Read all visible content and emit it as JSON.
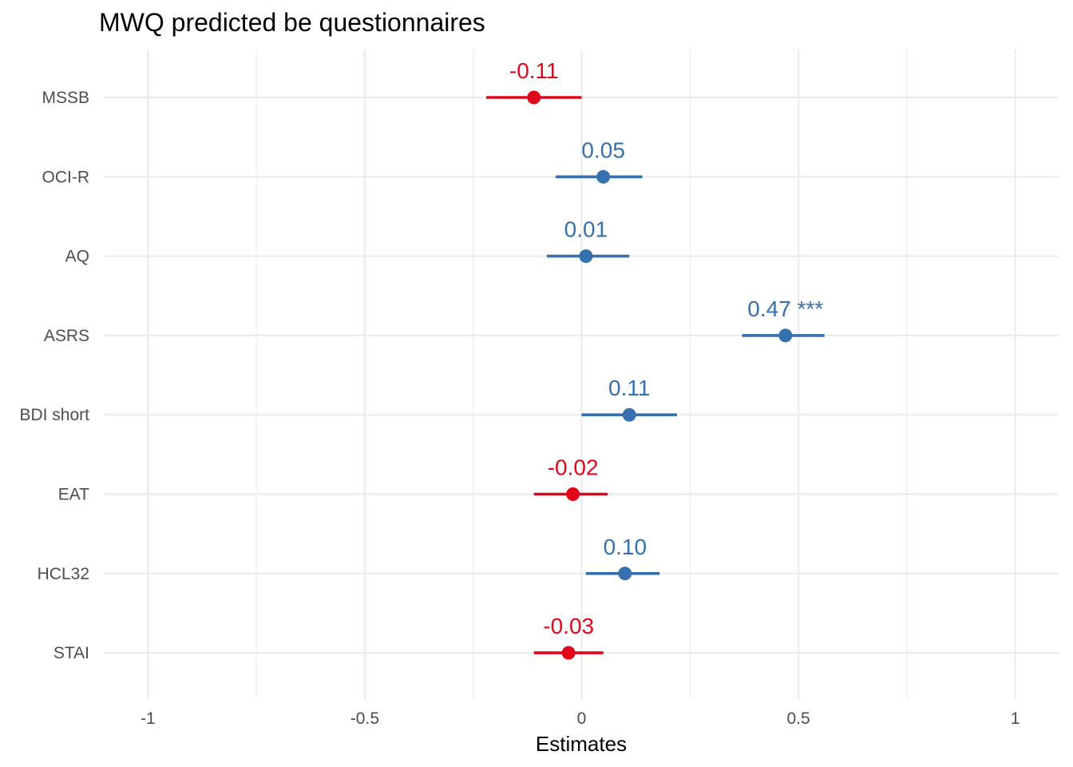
{
  "chart_data": {
    "type": "scatter",
    "title": "MWQ predicted be questionnaires",
    "xlabel": "Estimates",
    "ylabel": "",
    "xlim": [
      -1.1,
      1.1
    ],
    "xticks": [
      -1,
      -0.5,
      0,
      0.5,
      1
    ],
    "xtick_labels": [
      "-1",
      "-0.5",
      "0",
      "0.5",
      "1"
    ],
    "grid": true,
    "colors": {
      "positive": "#3670ae",
      "negative": "#e2061b"
    },
    "terms": [
      {
        "name": "MSSB",
        "estimate": -0.11,
        "ci_low": -0.22,
        "ci_high": 0.0,
        "label": "-0.11",
        "sign": "negative"
      },
      {
        "name": "OCI-R",
        "estimate": 0.05,
        "ci_low": -0.06,
        "ci_high": 0.14,
        "label": "0.05",
        "sign": "positive"
      },
      {
        "name": "AQ",
        "estimate": 0.01,
        "ci_low": -0.08,
        "ci_high": 0.11,
        "label": "0.01",
        "sign": "positive"
      },
      {
        "name": "ASRS",
        "estimate": 0.47,
        "ci_low": 0.37,
        "ci_high": 0.56,
        "label": "0.47 ***",
        "sign": "positive"
      },
      {
        "name": "BDI short",
        "estimate": 0.11,
        "ci_low": 0.0,
        "ci_high": 0.22,
        "label": "0.11",
        "sign": "positive"
      },
      {
        "name": "EAT",
        "estimate": -0.02,
        "ci_low": -0.11,
        "ci_high": 0.06,
        "label": "-0.02",
        "sign": "negative"
      },
      {
        "name": "HCL32",
        "estimate": 0.1,
        "ci_low": 0.01,
        "ci_high": 0.18,
        "label": "0.10",
        "sign": "positive"
      },
      {
        "name": "STAI",
        "estimate": -0.03,
        "ci_low": -0.11,
        "ci_high": 0.05,
        "label": "-0.03",
        "sign": "negative"
      }
    ]
  }
}
